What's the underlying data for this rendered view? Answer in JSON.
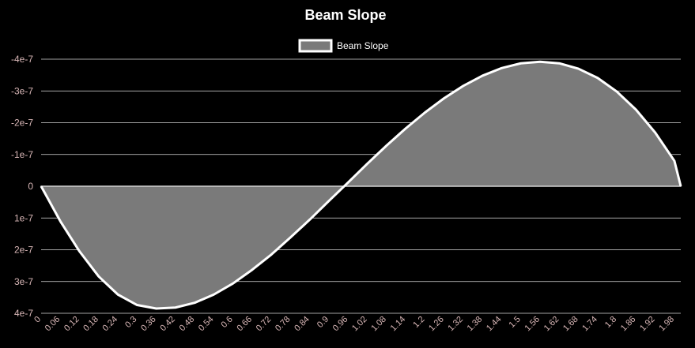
{
  "colors": {
    "background": "#000000",
    "grid": "#d9d9d9",
    "zero_line": "#ffffff",
    "title": "#ffffff",
    "tick_label": "#d9b7b7",
    "series_line": "#ffffff",
    "series_fill": "#7a7a7a"
  },
  "chart_data": {
    "type": "area",
    "title": "Beam Slope",
    "xlabel": "",
    "ylabel": "",
    "legend_position": "top-center",
    "grid": true,
    "y_axis_reversed": true,
    "ylim": [
      -4e-07,
      4e-07
    ],
    "xlim": [
      0,
      2
    ],
    "y_ticks": [
      "-4e-7",
      "-3e-7",
      "-2e-7",
      "-1e-7",
      "0",
      "1e-7",
      "2e-7",
      "3e-7",
      "4e-7"
    ],
    "x_ticks": [
      "0",
      "0.06",
      "0.12",
      "0.18",
      "0.24",
      "0.3",
      "0.36",
      "0.42",
      "0.48",
      "0.54",
      "0.6",
      "0.66",
      "0.72",
      "0.78",
      "0.84",
      "0.9",
      "0.96",
      "1.02",
      "1.08",
      "1.14",
      "1.2",
      "1.26",
      "1.32",
      "1.38",
      "1.44",
      "1.5",
      "1.56",
      "1.62",
      "1.68",
      "1.74",
      "1.8",
      "1.86",
      "1.92",
      "1.98"
    ],
    "series": [
      {
        "name": "Beam Slope",
        "x": [
          0,
          0.06,
          0.12,
          0.18,
          0.24,
          0.3,
          0.36,
          0.42,
          0.48,
          0.54,
          0.6,
          0.66,
          0.72,
          0.78,
          0.84,
          0.9,
          0.96,
          1.02,
          1.08,
          1.14,
          1.2,
          1.26,
          1.32,
          1.38,
          1.44,
          1.5,
          1.56,
          1.62,
          1.68,
          1.74,
          1.8,
          1.86,
          1.92,
          1.98,
          2.0
        ],
        "y": [
          0,
          1.1e-07,
          2.05e-07,
          2.84e-07,
          3.41e-07,
          3.74e-07,
          3.85e-07,
          3.82e-07,
          3.67e-07,
          3.41e-07,
          3.06e-07,
          2.63e-07,
          2.15e-07,
          1.61e-07,
          1.05e-07,
          4.6e-08,
          -1.2e-08,
          -7.1e-08,
          -1.28e-07,
          -1.82e-07,
          -2.32e-07,
          -2.77e-07,
          -3.16e-07,
          -3.48e-07,
          -3.72e-07,
          -3.87e-07,
          -3.92e-07,
          -3.87e-07,
          -3.7e-07,
          -3.41e-07,
          -2.98e-07,
          -2.41e-07,
          -1.69e-07,
          -8e-08,
          0
        ]
      }
    ]
  }
}
